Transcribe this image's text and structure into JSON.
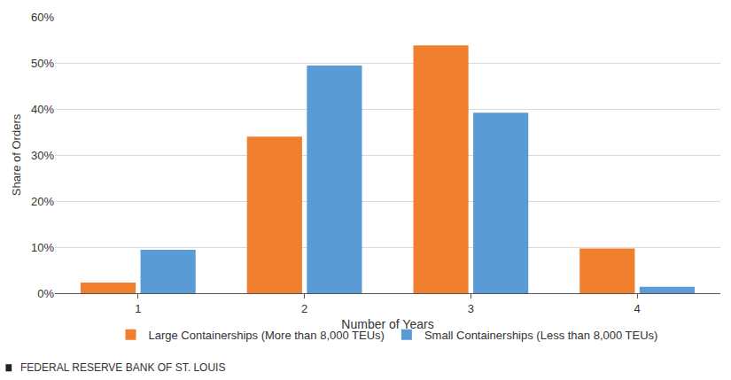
{
  "chart_data": {
    "type": "bar",
    "x_label": "Number of Years",
    "y_label": "Share of Orders",
    "source": "FEDERAL RESERVE BANK OF ST. LOUIS",
    "categories": [
      "1",
      "2",
      "3",
      "4"
    ],
    "series": [
      {
        "name": "Large Containerships (More than 8,000 TEUs)",
        "color": "#F07F2E",
        "values": [
          2.3,
          34.0,
          53.8,
          9.7
        ]
      },
      {
        "name": "Small Containerships (Less than 8,000 TEUs)",
        "color": "#5B9BD5",
        "values": [
          9.4,
          49.4,
          39.2,
          1.4
        ]
      }
    ],
    "ylim": [
      0,
      60
    ],
    "yticks": [
      {
        "value": 0,
        "label": "0%"
      },
      {
        "value": 10,
        "label": "10%"
      },
      {
        "value": 20,
        "label": "20%"
      },
      {
        "value": 30,
        "label": "30%"
      },
      {
        "value": 40,
        "label": "40%"
      },
      {
        "value": 50,
        "label": "50%"
      },
      {
        "value": 60,
        "label": "60%"
      }
    ],
    "grid": true,
    "legend": "bottom"
  }
}
